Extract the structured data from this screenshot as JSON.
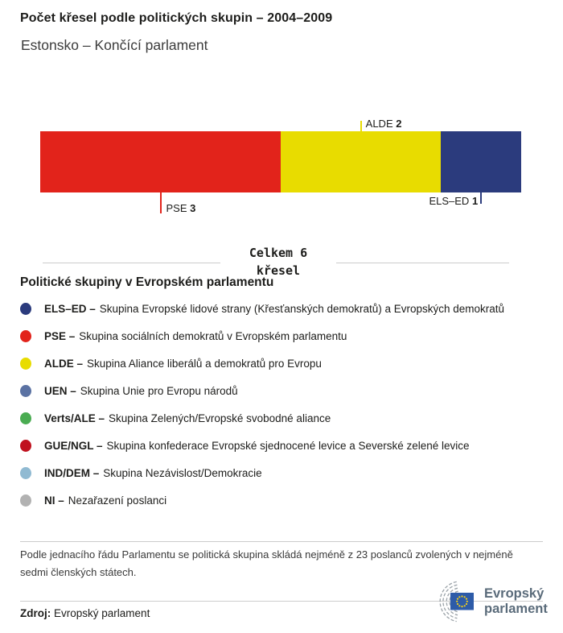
{
  "header": {
    "title": "Počet křesel podle politických skupin – 2004–2009",
    "subtitle": "Estonsko – Končící parlament"
  },
  "chart_data": {
    "type": "bar",
    "variant": "stacked-horizontal",
    "title": "Počet křesel podle politických skupin – 2004–2009",
    "region": "Estonsko – Končící parlament",
    "total_seats": 6,
    "total_label_line1": "Celkem 6",
    "total_label_line2": "křesel",
    "segments": [
      {
        "key": "pse",
        "group": "PSE",
        "seats": 3,
        "color": "#E2231B",
        "label_position": "below",
        "label_align": "left"
      },
      {
        "key": "alde",
        "group": "ALDE",
        "seats": 2,
        "color": "#E8DC00",
        "label_position": "above",
        "label_align": "left"
      },
      {
        "key": "els-ed",
        "group": "ELS–ED",
        "seats": 1,
        "color": "#2B3B7D",
        "label_position": "below",
        "label_align": "right"
      }
    ]
  },
  "legend": {
    "heading": "Politické skupiny v Evropském parlamentu",
    "items": [
      {
        "abbr": "ELS–ED –",
        "desc": "Skupina Evropské lidové strany (Křesťanských demokratů) a Evropských demokratů",
        "color": "#2B3B7D"
      },
      {
        "abbr": "PSE –",
        "desc": "Skupina sociálních demokratů v Evropském parlamentu",
        "color": "#E2231B"
      },
      {
        "abbr": "ALDE –",
        "desc": "Skupina Aliance liberálů a demokratů pro Evropu",
        "color": "#E8DC00"
      },
      {
        "abbr": "UEN –",
        "desc": "Skupina Unie pro Evropu národů",
        "color": "#5B72A3"
      },
      {
        "abbr": "Verts/ALE –",
        "desc": "Skupina Zelených/Evropské svobodné aliance",
        "color": "#4AAC52"
      },
      {
        "abbr": "GUE/NGL –",
        "desc": "Skupina konfederace Evropské sjednocené levice a Severské zelené levice",
        "color": "#C0111E"
      },
      {
        "abbr": "IND/DEM –",
        "desc": "Skupina Nezávislost/Demokracie",
        "color": "#90BAD2"
      },
      {
        "abbr": "NI –",
        "desc": "Nezařazení poslanci",
        "color": "#B2B2B2"
      }
    ]
  },
  "footnote": "Podle jednacího řádu Parlamentu se politická skupina skládá nejméně z 23 poslanců zvolených v nejméně sedmi členských státech.",
  "source": {
    "label": "Zdroj:",
    "value": "Evropský parlament"
  },
  "logo": {
    "line1": "Evropský",
    "line2": "parlament"
  }
}
